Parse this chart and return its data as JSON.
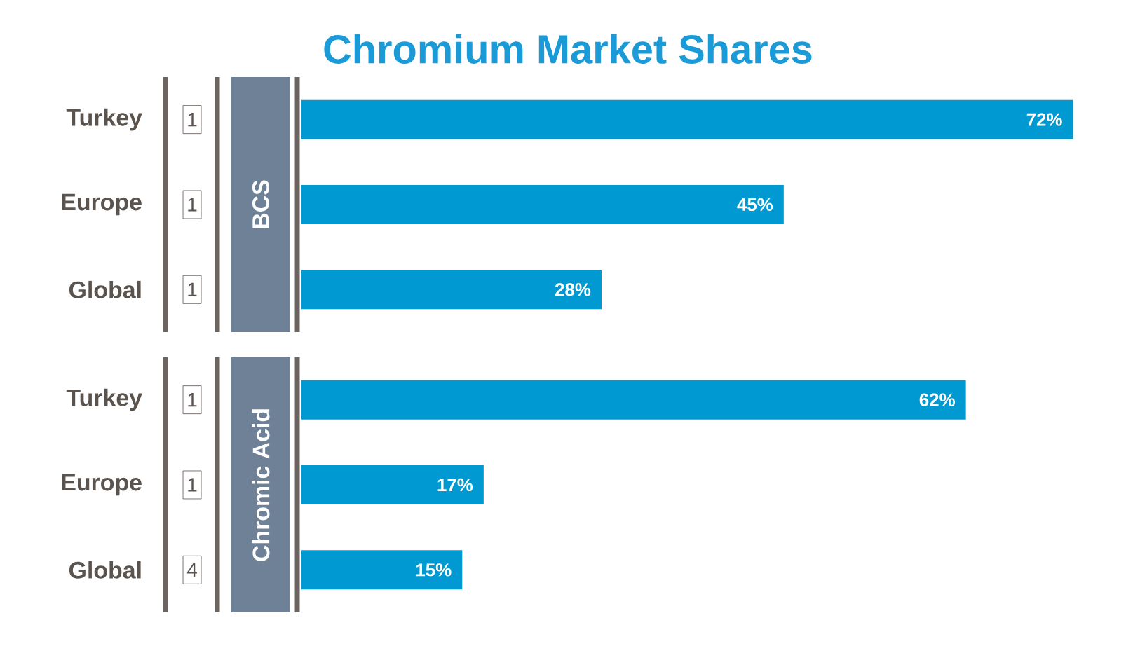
{
  "chart_data": [
    {
      "type": "bar",
      "orientation": "horizontal",
      "title": "Chromium Market Shares",
      "ylabel": "BCS",
      "categories": [
        "Turkey",
        "Europe",
        "Global"
      ],
      "values": [
        72,
        45,
        28
      ],
      "value_labels": [
        "72%",
        "45%",
        "28%"
      ],
      "annotations": [
        "1",
        "1",
        "1"
      ],
      "color": "#0099d1"
    },
    {
      "type": "bar",
      "orientation": "horizontal",
      "ylabel": "Chromic Acid",
      "categories": [
        "Turkey",
        "Europe",
        "Global"
      ],
      "values": [
        62,
        17,
        15
      ],
      "value_labels": [
        "62%",
        "17%",
        "15%"
      ],
      "annotations": [
        "1",
        "1",
        "4"
      ],
      "color": "#0099d1"
    }
  ]
}
